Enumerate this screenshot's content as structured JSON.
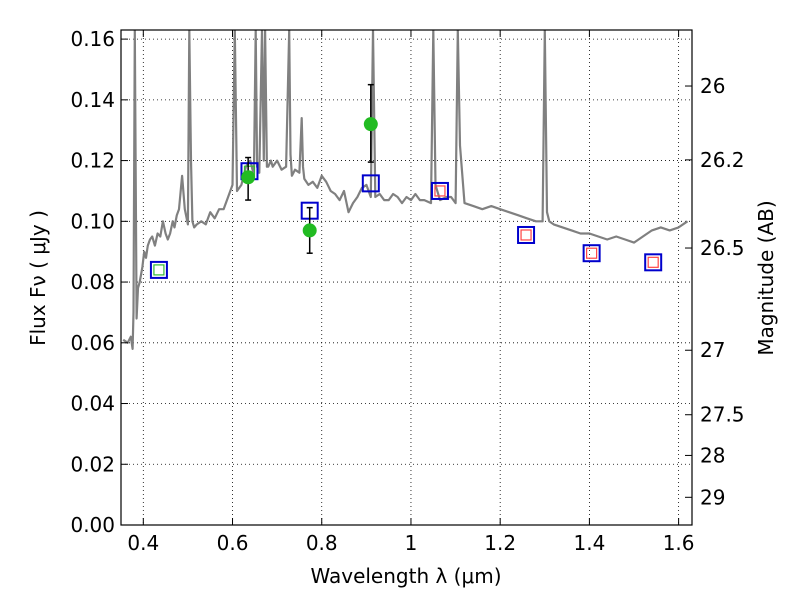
{
  "chart_data": {
    "type": "scatter",
    "title": "",
    "xlabel": "Wavelength  λ (μm)",
    "ylabel": "Flux  Fν  ( μJy )",
    "y2label": "Magnitude (AB)",
    "xlim": [
      0.35,
      1.63
    ],
    "ylim": [
      0.0,
      0.163
    ],
    "grid": true,
    "x_ticks": [
      {
        "value": 0.4,
        "label": "0.4"
      },
      {
        "value": 0.6,
        "label": "0.6"
      },
      {
        "value": 0.8,
        "label": "0.8"
      },
      {
        "value": 1.0,
        "label": "1"
      },
      {
        "value": 1.2,
        "label": "1.2"
      },
      {
        "value": 1.4,
        "label": "1.4"
      },
      {
        "value": 1.6,
        "label": "1.6"
      }
    ],
    "y_ticks": [
      {
        "value": 0.0,
        "label": "0.00"
      },
      {
        "value": 0.02,
        "label": "0.02"
      },
      {
        "value": 0.04,
        "label": "0.04"
      },
      {
        "value": 0.06,
        "label": "0.06"
      },
      {
        "value": 0.08,
        "label": "0.08"
      },
      {
        "value": 0.1,
        "label": "0.10"
      },
      {
        "value": 0.12,
        "label": "0.12"
      },
      {
        "value": 0.14,
        "label": "0.14"
      },
      {
        "value": 0.16,
        "label": "0.16"
      }
    ],
    "y2_ticks": [
      {
        "value": 26,
        "label": "26"
      },
      {
        "value": 26.2,
        "label": "26.2"
      },
      {
        "value": 26.5,
        "label": "26.5"
      },
      {
        "value": 27,
        "label": "27"
      },
      {
        "value": 27.5,
        "label": "27.5"
      },
      {
        "value": 28,
        "label": "28"
      },
      {
        "value": 29,
        "label": "29"
      }
    ],
    "y2_zero_point_ujy": 3631000000.0,
    "series": [
      {
        "name": "model spectrum",
        "kind": "line",
        "color": "#808080",
        "x": [
          0.355,
          0.365,
          0.372,
          0.376,
          0.378,
          0.381,
          0.385,
          0.388,
          0.392,
          0.398,
          0.402,
          0.406,
          0.41,
          0.415,
          0.42,
          0.426,
          0.432,
          0.438,
          0.444,
          0.45,
          0.455,
          0.46,
          0.466,
          0.47,
          0.475,
          0.48,
          0.487,
          0.493,
          0.5,
          0.503,
          0.507,
          0.51,
          0.514,
          0.52,
          0.53,
          0.54,
          0.55,
          0.56,
          0.57,
          0.58,
          0.59,
          0.6,
          0.605,
          0.61,
          0.62,
          0.63,
          0.64,
          0.648,
          0.652,
          0.655,
          0.66,
          0.666,
          0.67,
          0.673,
          0.677,
          0.68,
          0.686,
          0.69,
          0.7,
          0.71,
          0.72,
          0.727,
          0.73,
          0.733,
          0.74,
          0.75,
          0.755,
          0.758,
          0.761,
          0.77,
          0.78,
          0.79,
          0.8,
          0.81,
          0.82,
          0.83,
          0.84,
          0.85,
          0.86,
          0.87,
          0.88,
          0.89,
          0.9,
          0.91,
          0.915,
          0.92,
          0.93,
          0.94,
          0.95,
          0.96,
          0.97,
          0.98,
          0.99,
          1.0,
          1.01,
          1.02,
          1.03,
          1.045,
          1.05,
          1.055,
          1.065,
          1.08,
          1.09,
          1.1,
          1.105,
          1.11,
          1.12,
          1.14,
          1.16,
          1.18,
          1.2,
          1.22,
          1.24,
          1.26,
          1.28,
          1.295,
          1.3,
          1.305,
          1.31,
          1.32,
          1.34,
          1.36,
          1.38,
          1.4,
          1.42,
          1.44,
          1.46,
          1.48,
          1.5,
          1.52,
          1.54,
          1.56,
          1.58,
          1.6,
          1.62
        ],
        "y": [
          0.061,
          0.06,
          0.062,
          0.058,
          0.07,
          0.163,
          0.068,
          0.078,
          0.08,
          0.085,
          0.09,
          0.088,
          0.092,
          0.094,
          0.095,
          0.092,
          0.096,
          0.095,
          0.1,
          0.096,
          0.094,
          0.096,
          0.1,
          0.098,
          0.102,
          0.104,
          0.115,
          0.104,
          0.099,
          0.163,
          0.12,
          0.1,
          0.098,
          0.099,
          0.1,
          0.099,
          0.103,
          0.101,
          0.104,
          0.104,
          0.108,
          0.112,
          0.163,
          0.11,
          0.112,
          0.118,
          0.12,
          0.115,
          0.163,
          0.118,
          0.116,
          0.163,
          0.12,
          0.163,
          0.118,
          0.118,
          0.12,
          0.118,
          0.12,
          0.117,
          0.118,
          0.163,
          0.122,
          0.115,
          0.117,
          0.116,
          0.134,
          0.118,
          0.114,
          0.112,
          0.113,
          0.111,
          0.115,
          0.113,
          0.11,
          0.109,
          0.107,
          0.11,
          0.103,
          0.106,
          0.108,
          0.111,
          0.112,
          0.108,
          0.163,
          0.108,
          0.109,
          0.107,
          0.107,
          0.109,
          0.108,
          0.106,
          0.108,
          0.107,
          0.109,
          0.107,
          0.107,
          0.106,
          0.163,
          0.112,
          0.107,
          0.108,
          0.108,
          0.106,
          0.163,
          0.125,
          0.106,
          0.105,
          0.104,
          0.105,
          0.104,
          0.103,
          0.102,
          0.101,
          0.1,
          0.1,
          0.163,
          0.103,
          0.1,
          0.099,
          0.098,
          0.097,
          0.096,
          0.096,
          0.095,
          0.094,
          0.095,
          0.094,
          0.093,
          0.095,
          0.097,
          0.098,
          0.097,
          0.098,
          0.1
        ]
      },
      {
        "name": "model photometry",
        "kind": "square",
        "stroke": "#0000cc",
        "x": [
          0.435,
          0.638,
          0.773,
          0.91,
          1.065,
          1.258,
          1.405,
          1.543
        ],
        "y": [
          0.084,
          0.1165,
          0.1035,
          0.1125,
          0.11,
          0.0955,
          0.0895,
          0.0865
        ]
      },
      {
        "name": "inner markers green",
        "kind": "small-square",
        "stroke": "#33bb33",
        "x": [
          0.435,
          0.638
        ],
        "y": [
          0.084,
          0.1165
        ]
      },
      {
        "name": "inner markers red",
        "kind": "small-square",
        "stroke": "#ff4444",
        "x": [
          1.065,
          1.258,
          1.405,
          1.543
        ],
        "y": [
          0.11,
          0.0955,
          0.0895,
          0.0865
        ]
      },
      {
        "name": "observed photometry",
        "kind": "point",
        "fill": "#22bb22",
        "x": [
          0.635,
          0.773,
          0.91
        ],
        "y": [
          0.1145,
          0.097,
          0.132
        ],
        "yerr_low": [
          0.0075,
          0.0075,
          0.0125
        ],
        "yerr_high": [
          0.0065,
          0.0075,
          0.013
        ]
      }
    ]
  }
}
